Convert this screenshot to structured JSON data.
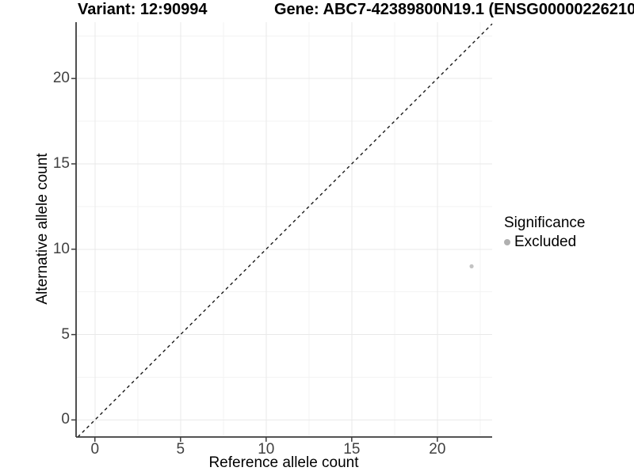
{
  "titles": {
    "variant": "Variant: 12:90994",
    "gene": "Gene: ABC7-42389800N19.1 (ENSG00000226210"
  },
  "chart_data": {
    "type": "scatter",
    "xlabel": "Reference allele count",
    "ylabel": "Alternative allele count",
    "xlim": [
      -1.1,
      23.2
    ],
    "ylim": [
      -1.0,
      23.3
    ],
    "xticks": [
      "0",
      "5",
      "10",
      "15",
      "20"
    ],
    "yticks": [
      "0",
      "5",
      "10",
      "15",
      "20"
    ],
    "xtick_values": [
      0,
      5,
      10,
      15,
      20
    ],
    "ytick_values": [
      0,
      5,
      10,
      15,
      20
    ],
    "x_minor_ticks": [
      2.5,
      7.5,
      12.5,
      17.5,
      22.5
    ],
    "y_minor_ticks": [
      2.5,
      7.5,
      12.5,
      17.5,
      22.5
    ],
    "grid": "major+minor",
    "points": [
      {
        "x": 22,
        "y": 9,
        "significance": "Excluded"
      }
    ],
    "identity_line": {
      "style": "dashed",
      "slope": 1,
      "intercept": 0
    },
    "legend": {
      "title": "Significance",
      "position": "right",
      "items": [
        {
          "label": "Excluded",
          "color": "#bebebe"
        }
      ]
    },
    "colors": {
      "point": "#c3c3c3",
      "legend_key": "#b0b0b0",
      "axis_line": "#3c3c3c",
      "identity_line": "#1a1a1a",
      "grid_major": "#e9e9e9",
      "grid_minor": "#f3f3f3",
      "tick_label": "#404040",
      "background": "#ffffff"
    }
  }
}
